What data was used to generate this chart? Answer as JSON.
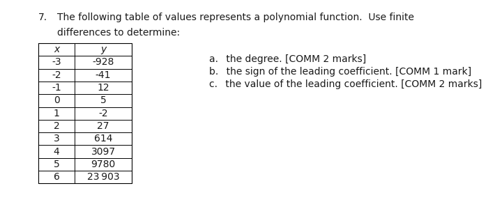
{
  "question_number": "7.",
  "question_text_line1": "The following table of values represents a polynomial function.  Use finite",
  "question_text_line2": "differences to determine:",
  "table_header": [
    "x",
    "y"
  ],
  "table_data": [
    [
      "-3",
      "-928"
    ],
    [
      "-2",
      "-41"
    ],
    [
      "-1",
      "12"
    ],
    [
      "0",
      "5"
    ],
    [
      "1",
      "-2"
    ],
    [
      "2",
      "27"
    ],
    [
      "3",
      "614"
    ],
    [
      "4",
      "3097"
    ],
    [
      "5",
      "9780"
    ],
    [
      "6",
      "23 903"
    ]
  ],
  "sub_questions_a": "a.  the degree. [COMM 2 marks]",
  "sub_questions_b": "b.  the sign of the leading coefficient. [COMM 1 mark]",
  "sub_questions_c": "c.  the value of the leading coefficient. [COMM 2 marks]",
  "background_color": "#ffffff",
  "text_color": "#1a1a1a",
  "font_size": 10.0,
  "table_font_size": 10.0
}
